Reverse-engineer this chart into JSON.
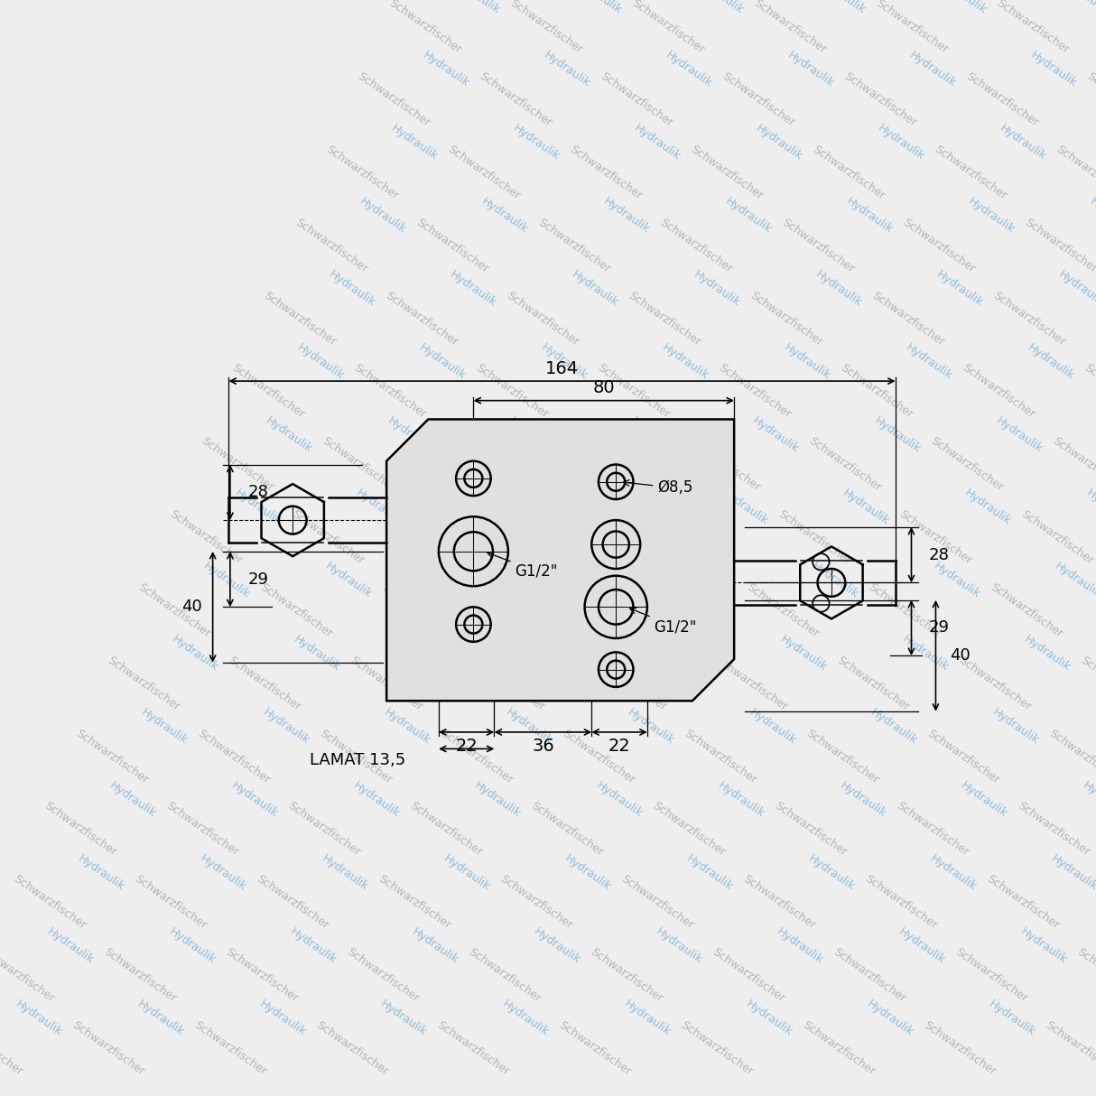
{
  "bg_color": "#eeeeee",
  "wm_text1": "Schwarzfischer",
  "wm_text2": "Hydraulik",
  "wm_color1": "#b0b0b0",
  "wm_color2": "#88b8d8",
  "dim_164": "164",
  "dim_80": "80",
  "dim_29_left": "29",
  "dim_40_left": "40",
  "dim_28_left": "28",
  "dim_28_right": "28",
  "dim_40_right": "40",
  "dim_29_right": "29",
  "dim_22_left": "22",
  "dim_36": "36",
  "dim_22_right": "22",
  "label_G12_top": "G1/2\"",
  "label_G12_bot": "G1/2\"",
  "label_d85": "Ø8,5",
  "label_LAMAT": "LAMAT 13,5"
}
